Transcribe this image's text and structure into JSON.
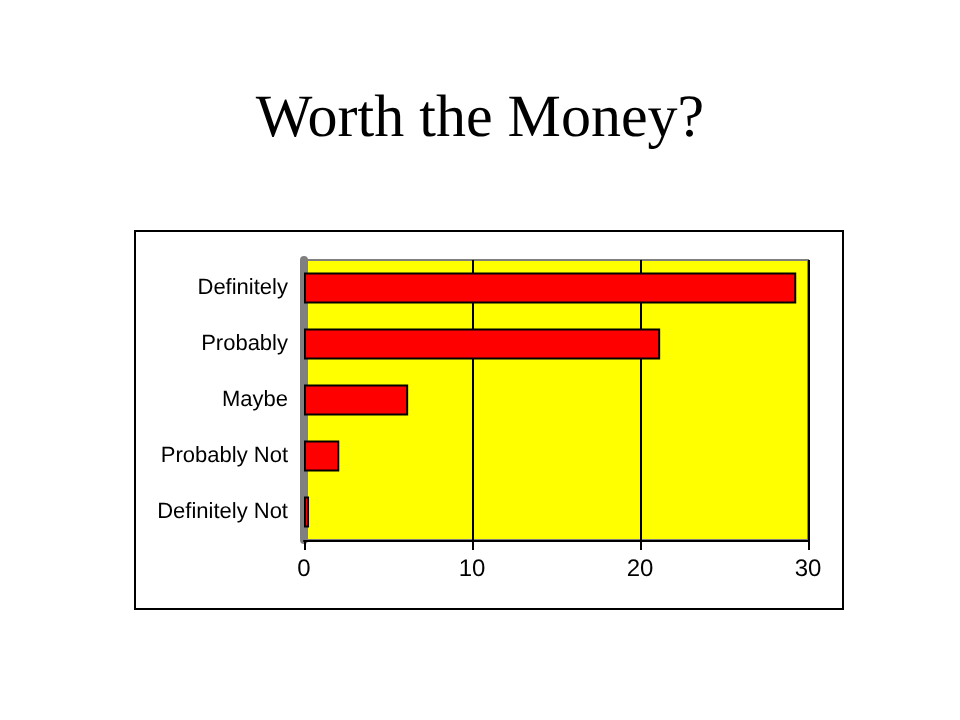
{
  "chart_data": {
    "type": "bar",
    "title": "Worth the Money?",
    "orientation": "horizontal",
    "categories": [
      "Definitely",
      "Probably",
      "Maybe",
      "Probably Not",
      "Definitely Not"
    ],
    "values": [
      29.3,
      21.2,
      6.2,
      2.1,
      0.3
    ],
    "color": "#ff0000",
    "xlim": [
      0,
      30
    ],
    "xticks": [
      0,
      10,
      20,
      30
    ],
    "grid": "x"
  }
}
